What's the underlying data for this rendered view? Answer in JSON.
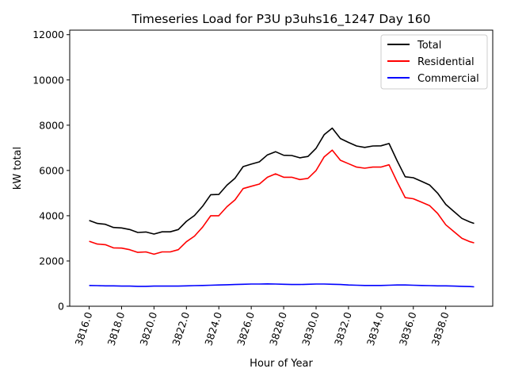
{
  "chart_data": {
    "type": "line",
    "title": "Timeseries Load for P3U p3uhs16_1247  Day 160",
    "xlabel": "Hour of Year",
    "ylabel": "kW total",
    "xlim": [
      3814.8,
      3840.9
    ],
    "ylim": [
      0,
      12200
    ],
    "xticks": [
      3816,
      3818,
      3820,
      3822,
      3824,
      3826,
      3828,
      3830,
      3832,
      3834,
      3836,
      3838
    ],
    "xtick_labels": [
      "3816.0",
      "3818.0",
      "3820.0",
      "3822.0",
      "3824.0",
      "3826.0",
      "3828.0",
      "3830.0",
      "3832.0",
      "3834.0",
      "3836.0",
      "3838.0"
    ],
    "yticks": [
      0,
      2000,
      4000,
      6000,
      8000,
      10000,
      12000
    ],
    "ytick_labels": [
      "0",
      "2000",
      "4000",
      "6000",
      "8000",
      "10000",
      "12000"
    ],
    "grid": false,
    "legend_position": "top-right",
    "x": [
      3816,
      3816.5,
      3817,
      3817.5,
      3818,
      3818.5,
      3819,
      3819.5,
      3820,
      3820.5,
      3821,
      3821.5,
      3822,
      3822.5,
      3823,
      3823.5,
      3824,
      3824.5,
      3825,
      3825.5,
      3826,
      3826.5,
      3827,
      3827.5,
      3828,
      3828.5,
      3829,
      3829.5,
      3830,
      3830.5,
      3831,
      3831.5,
      3832,
      3832.5,
      3833,
      3833.5,
      3834,
      3834.5,
      3835,
      3835.5,
      3836,
      3836.5,
      3837,
      3837.5,
      3838,
      3838.5,
      3839,
      3839.5,
      3839.75
    ],
    "series": [
      {
        "name": "Total",
        "color": "#000000",
        "values": [
          3790,
          3660,
          3620,
          3480,
          3460,
          3390,
          3260,
          3280,
          3190,
          3290,
          3290,
          3390,
          3750,
          4010,
          4420,
          4930,
          4940,
          5350,
          5660,
          6170,
          6280,
          6380,
          6690,
          6830,
          6670,
          6660,
          6560,
          6620,
          6980,
          7580,
          7870,
          7410,
          7240,
          7080,
          7020,
          7080,
          7090,
          7190,
          6430,
          5720,
          5680,
          5520,
          5360,
          5000,
          4500,
          4190,
          3880,
          3720,
          3660
        ]
      },
      {
        "name": "Residential",
        "color": "#ff0000",
        "values": [
          2870,
          2750,
          2720,
          2580,
          2570,
          2500,
          2380,
          2400,
          2300,
          2400,
          2400,
          2500,
          2850,
          3100,
          3500,
          4000,
          4000,
          4400,
          4700,
          5200,
          5300,
          5400,
          5700,
          5850,
          5700,
          5700,
          5600,
          5650,
          6000,
          6600,
          6900,
          6450,
          6300,
          6150,
          6100,
          6150,
          6150,
          6250,
          5500,
          4800,
          4750,
          4600,
          4450,
          4100,
          3600,
          3300,
          3000,
          2850,
          2800
        ]
      },
      {
        "name": "Commercial",
        "color": "#0000ff",
        "values": [
          920,
          910,
          900,
          900,
          890,
          890,
          880,
          880,
          890,
          890,
          890,
          890,
          900,
          910,
          920,
          930,
          940,
          950,
          960,
          970,
          980,
          980,
          990,
          980,
          970,
          960,
          960,
          970,
          980,
          980,
          970,
          960,
          940,
          930,
          920,
          920,
          920,
          930,
          940,
          940,
          930,
          920,
          910,
          900,
          900,
          890,
          880,
          870,
          860
        ]
      }
    ]
  }
}
